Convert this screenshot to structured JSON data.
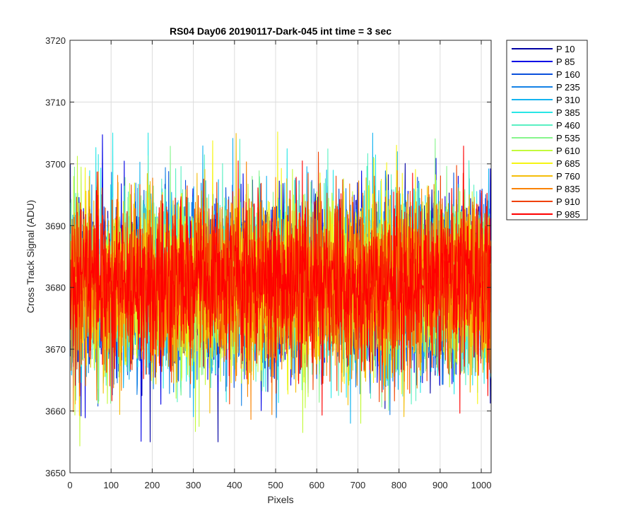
{
  "chart_data": {
    "type": "line",
    "title": "RS04 Day06 20190117-Dark-045 int time = 3 sec",
    "xlabel": "Pixels",
    "ylabel": "Cross Track Signal (ADU)",
    "xlim": [
      0,
      1024
    ],
    "ylim": [
      3650,
      3720
    ],
    "xticks": [
      0,
      100,
      200,
      300,
      400,
      500,
      600,
      700,
      800,
      900,
      1000
    ],
    "yticks": [
      3650,
      3660,
      3670,
      3680,
      3690,
      3700,
      3710,
      3720
    ],
    "grid": true,
    "legend_position": "outside-top-right",
    "n_points": 1024,
    "series": [
      {
        "name": "P 10",
        "color": "#0000a3",
        "mean": 3680.5,
        "sd": 7.0,
        "min": 3655,
        "max": 3705
      },
      {
        "name": "P 85",
        "color": "#0000e6",
        "mean": 3680.5,
        "sd": 7.0,
        "min": 3654,
        "max": 3706
      },
      {
        "name": "P 160",
        "color": "#0a50dc",
        "mean": 3680.5,
        "sd": 7.0,
        "min": 3658,
        "max": 3707
      },
      {
        "name": "P 235",
        "color": "#1482e6",
        "mean": 3680.5,
        "sd": 7.0,
        "min": 3654,
        "max": 3708
      },
      {
        "name": "P 310",
        "color": "#14b4f0",
        "mean": 3680.5,
        "sd": 7.0,
        "min": 3658,
        "max": 3711
      },
      {
        "name": "P 385",
        "color": "#28e6e6",
        "mean": 3680.5,
        "sd": 7.0,
        "min": 3659,
        "max": 3705
      },
      {
        "name": "P 460",
        "color": "#5af0c3",
        "mean": 3680.5,
        "sd": 7.0,
        "min": 3657,
        "max": 3704
      },
      {
        "name": "P 535",
        "color": "#87f58c",
        "mean": 3680.5,
        "sd": 7.0,
        "min": 3655,
        "max": 3706
      },
      {
        "name": "P 610",
        "color": "#c3fa3c",
        "mean": 3680.5,
        "sd": 7.0,
        "min": 3651,
        "max": 3705
      },
      {
        "name": "P 685",
        "color": "#f5f514",
        "mean": 3680.5,
        "sd": 7.0,
        "min": 3657,
        "max": 3709
      },
      {
        "name": "P 760",
        "color": "#f5be0a",
        "mean": 3680.5,
        "sd": 7.0,
        "min": 3657,
        "max": 3710
      },
      {
        "name": "P 835",
        "color": "#fa8200",
        "mean": 3680.5,
        "sd": 7.0,
        "min": 3656,
        "max": 3708
      },
      {
        "name": "P 910",
        "color": "#f04100",
        "mean": 3680.5,
        "sd": 7.0,
        "min": 3653,
        "max": 3708
      },
      {
        "name": "P 985",
        "color": "#ff0000",
        "mean": 3680.5,
        "sd": 6.5,
        "min": 3656,
        "max": 3707
      }
    ]
  }
}
